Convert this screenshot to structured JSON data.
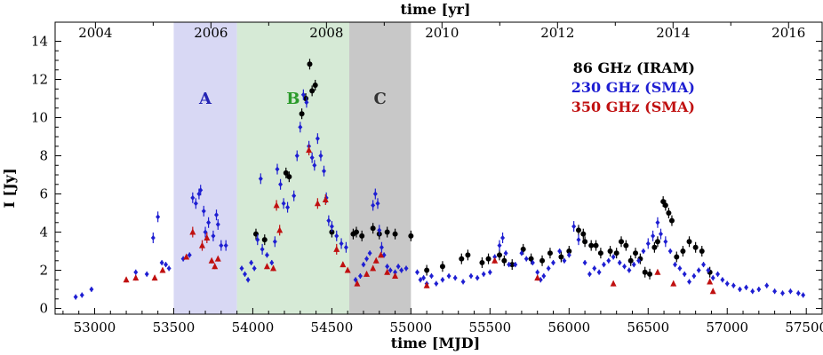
{
  "chart_data": {
    "type": "scatter",
    "xlabel": "time [MJD]",
    "ylabel": "I [Jy]",
    "top_xlabel": "time [yr]",
    "xlim": [
      52750,
      57600
    ],
    "ylim": [
      -0.3,
      15
    ],
    "x_ticks": [
      "53000",
      "53500",
      "54000",
      "54500",
      "55000",
      "55500",
      "56000",
      "56500",
      "57000",
      "57500"
    ],
    "y_ticks": [
      "0",
      "2",
      "4",
      "6",
      "8",
      "10",
      "12",
      "14"
    ],
    "top_ticks": [
      "2004",
      "2006",
      "2008",
      "2010",
      "2012",
      "2014",
      "2016"
    ],
    "legend_position": "top-right",
    "regions": [
      {
        "label": "A",
        "x_start": 53500,
        "x_end": 53900,
        "color": "#d8d8f4",
        "label_color": "#2323b4"
      },
      {
        "label": "B",
        "x_start": 53900,
        "x_end": 54610,
        "color": "#d6ead6",
        "label_color": "#2a9a2a"
      },
      {
        "label": "C",
        "x_start": 54610,
        "x_end": 55000,
        "color": "#c8c8c8",
        "label_color": "#333333"
      }
    ],
    "series": [
      {
        "name": "86 GHz (IRAM)",
        "color": "#000000",
        "marker": "circle",
        "points": [
          [
            54020,
            3.9
          ],
          [
            54075,
            3.6
          ],
          [
            54210,
            7.1
          ],
          [
            54230,
            6.9
          ],
          [
            54310,
            10.2
          ],
          [
            54335,
            11.0
          ],
          [
            54360,
            12.8
          ],
          [
            54375,
            11.4
          ],
          [
            54395,
            11.7
          ],
          [
            54500,
            4.0
          ],
          [
            54635,
            3.9
          ],
          [
            54655,
            4.0
          ],
          [
            54690,
            3.8
          ],
          [
            54760,
            4.2
          ],
          [
            54800,
            3.9
          ],
          [
            54850,
            4.0
          ],
          [
            54900,
            3.9
          ],
          [
            55000,
            3.8
          ],
          [
            55100,
            2.0
          ],
          [
            55200,
            2.2
          ],
          [
            55320,
            2.6
          ],
          [
            55360,
            2.8
          ],
          [
            55450,
            2.4
          ],
          [
            55490,
            2.6
          ],
          [
            55560,
            2.8
          ],
          [
            55590,
            2.5
          ],
          [
            55640,
            2.3
          ],
          [
            55710,
            3.1
          ],
          [
            55760,
            2.6
          ],
          [
            55830,
            2.5
          ],
          [
            55880,
            2.9
          ],
          [
            55950,
            2.7
          ],
          [
            56000,
            3.0
          ],
          [
            56060,
            4.1
          ],
          [
            56090,
            3.9
          ],
          [
            56100,
            3.5
          ],
          [
            56140,
            3.3
          ],
          [
            56170,
            3.3
          ],
          [
            56200,
            2.9
          ],
          [
            56260,
            3.0
          ],
          [
            56300,
            2.9
          ],
          [
            56330,
            3.5
          ],
          [
            56360,
            3.3
          ],
          [
            56390,
            2.5
          ],
          [
            56420,
            2.9
          ],
          [
            56450,
            2.6
          ],
          [
            56480,
            1.9
          ],
          [
            56510,
            1.8
          ],
          [
            56540,
            3.2
          ],
          [
            56560,
            3.5
          ],
          [
            56595,
            5.6
          ],
          [
            56610,
            5.4
          ],
          [
            56630,
            5.0
          ],
          [
            56650,
            4.6
          ],
          [
            56680,
            2.7
          ],
          [
            56720,
            3.0
          ],
          [
            56760,
            3.5
          ],
          [
            56800,
            3.2
          ],
          [
            56840,
            3.0
          ],
          [
            56890,
            1.9
          ]
        ]
      },
      {
        "name": "230 GHz (SMA)",
        "color": "#1e1ed2",
        "marker": "diamond",
        "points": [
          [
            52880,
            0.6
          ],
          [
            52920,
            0.7
          ],
          [
            52980,
            1.0
          ],
          [
            53260,
            1.9
          ],
          [
            53330,
            1.8
          ],
          [
            53370,
            3.7
          ],
          [
            53400,
            4.8
          ],
          [
            53425,
            2.4
          ],
          [
            53450,
            2.3
          ],
          [
            53470,
            2.1
          ],
          [
            53560,
            2.6
          ],
          [
            53600,
            2.8
          ],
          [
            53620,
            5.8
          ],
          [
            53640,
            5.5
          ],
          [
            53660,
            6.0
          ],
          [
            53670,
            6.2
          ],
          [
            53690,
            5.1
          ],
          [
            53700,
            4.0
          ],
          [
            53720,
            4.5
          ],
          [
            53750,
            3.8
          ],
          [
            53770,
            4.9
          ],
          [
            53780,
            4.4
          ],
          [
            53800,
            3.3
          ],
          [
            53830,
            3.3
          ],
          [
            53930,
            2.1
          ],
          [
            53950,
            1.8
          ],
          [
            53970,
            1.5
          ],
          [
            53990,
            2.4
          ],
          [
            54010,
            2.1
          ],
          [
            54030,
            3.6
          ],
          [
            54050,
            6.8
          ],
          [
            54060,
            3.1
          ],
          [
            54090,
            2.8
          ],
          [
            54120,
            2.4
          ],
          [
            54140,
            3.5
          ],
          [
            54155,
            7.3
          ],
          [
            54175,
            6.5
          ],
          [
            54195,
            5.5
          ],
          [
            54220,
            5.3
          ],
          [
            54260,
            5.9
          ],
          [
            54280,
            8.0
          ],
          [
            54300,
            9.5
          ],
          [
            54320,
            11.2
          ],
          [
            54340,
            10.8
          ],
          [
            54355,
            8.5
          ],
          [
            54375,
            7.9
          ],
          [
            54390,
            7.5
          ],
          [
            54410,
            8.9
          ],
          [
            54430,
            8.0
          ],
          [
            54450,
            7.2
          ],
          [
            54465,
            5.8
          ],
          [
            54480,
            4.6
          ],
          [
            54500,
            4.3
          ],
          [
            54530,
            3.8
          ],
          [
            54560,
            3.4
          ],
          [
            54590,
            3.2
          ],
          [
            54650,
            1.5
          ],
          [
            54680,
            1.7
          ],
          [
            54700,
            2.3
          ],
          [
            54720,
            2.6
          ],
          [
            54740,
            2.9
          ],
          [
            54760,
            5.4
          ],
          [
            54775,
            6.0
          ],
          [
            54790,
            5.5
          ],
          [
            54800,
            4.1
          ],
          [
            54815,
            3.2
          ],
          [
            54830,
            2.8
          ],
          [
            54850,
            2.2
          ],
          [
            54870,
            2.0
          ],
          [
            54900,
            1.9
          ],
          [
            54920,
            2.2
          ],
          [
            54940,
            2.0
          ],
          [
            54970,
            2.1
          ],
          [
            55040,
            1.9
          ],
          [
            55060,
            1.5
          ],
          [
            55080,
            1.6
          ],
          [
            55100,
            1.3
          ],
          [
            55130,
            1.7
          ],
          [
            55160,
            1.3
          ],
          [
            55200,
            1.5
          ],
          [
            55240,
            1.7
          ],
          [
            55280,
            1.6
          ],
          [
            55330,
            1.4
          ],
          [
            55380,
            1.7
          ],
          [
            55420,
            1.6
          ],
          [
            55460,
            1.8
          ],
          [
            55500,
            1.9
          ],
          [
            55530,
            2.7
          ],
          [
            55560,
            3.3
          ],
          [
            55580,
            3.7
          ],
          [
            55600,
            2.9
          ],
          [
            55620,
            2.3
          ],
          [
            55660,
            2.3
          ],
          [
            55700,
            2.9
          ],
          [
            55730,
            2.6
          ],
          [
            55770,
            2.4
          ],
          [
            55800,
            1.9
          ],
          [
            55820,
            1.5
          ],
          [
            55840,
            1.7
          ],
          [
            55870,
            2.1
          ],
          [
            55900,
            2.4
          ],
          [
            55940,
            3.0
          ],
          [
            55970,
            2.5
          ],
          [
            56000,
            2.8
          ],
          [
            56030,
            4.3
          ],
          [
            56060,
            3.6
          ],
          [
            56100,
            2.4
          ],
          [
            56130,
            1.8
          ],
          [
            56160,
            2.1
          ],
          [
            56190,
            1.9
          ],
          [
            56220,
            2.3
          ],
          [
            56250,
            2.5
          ],
          [
            56280,
            2.7
          ],
          [
            56320,
            2.4
          ],
          [
            56350,
            2.2
          ],
          [
            56380,
            2.0
          ],
          [
            56410,
            2.3
          ],
          [
            56440,
            2.5
          ],
          [
            56470,
            3.0
          ],
          [
            56500,
            3.4
          ],
          [
            56530,
            3.8
          ],
          [
            56560,
            4.5
          ],
          [
            56580,
            3.9
          ],
          [
            56610,
            3.5
          ],
          [
            56640,
            3.0
          ],
          [
            56670,
            2.3
          ],
          [
            56700,
            2.1
          ],
          [
            56730,
            1.8
          ],
          [
            56760,
            1.4
          ],
          [
            56790,
            1.7
          ],
          [
            56820,
            2.0
          ],
          [
            56850,
            2.3
          ],
          [
            56880,
            2.0
          ],
          [
            56910,
            1.6
          ],
          [
            56940,
            1.8
          ],
          [
            56970,
            1.5
          ],
          [
            57000,
            1.3
          ],
          [
            57040,
            1.2
          ],
          [
            57080,
            1.0
          ],
          [
            57120,
            1.1
          ],
          [
            57160,
            0.9
          ],
          [
            57200,
            1.0
          ],
          [
            57250,
            1.2
          ],
          [
            57300,
            0.9
          ],
          [
            57350,
            0.8
          ],
          [
            57400,
            0.9
          ],
          [
            57450,
            0.8
          ],
          [
            57480,
            0.7
          ]
        ]
      },
      {
        "name": "350 GHz (SMA)",
        "color": "#c01010",
        "marker": "triangle",
        "points": [
          [
            53200,
            1.5
          ],
          [
            53260,
            1.6
          ],
          [
            53380,
            1.6
          ],
          [
            53430,
            2.0
          ],
          [
            53580,
            2.7
          ],
          [
            53620,
            4.0
          ],
          [
            53680,
            3.3
          ],
          [
            53710,
            3.7
          ],
          [
            53740,
            2.5
          ],
          [
            53760,
            2.2
          ],
          [
            53780,
            2.6
          ],
          [
            54090,
            2.2
          ],
          [
            54130,
            2.1
          ],
          [
            54150,
            5.4
          ],
          [
            54170,
            4.1
          ],
          [
            54355,
            8.3
          ],
          [
            54410,
            5.5
          ],
          [
            54460,
            5.7
          ],
          [
            54530,
            3.1
          ],
          [
            54570,
            2.3
          ],
          [
            54600,
            2.0
          ],
          [
            54660,
            1.3
          ],
          [
            54720,
            1.8
          ],
          [
            54760,
            2.1
          ],
          [
            54780,
            2.5
          ],
          [
            54810,
            2.8
          ],
          [
            54850,
            1.9
          ],
          [
            54900,
            1.7
          ],
          [
            55100,
            1.2
          ],
          [
            55530,
            2.5
          ],
          [
            55800,
            1.6
          ],
          [
            56280,
            1.3
          ],
          [
            56560,
            1.9
          ],
          [
            56660,
            1.3
          ],
          [
            56890,
            1.4
          ],
          [
            56910,
            0.9
          ]
        ]
      }
    ]
  }
}
